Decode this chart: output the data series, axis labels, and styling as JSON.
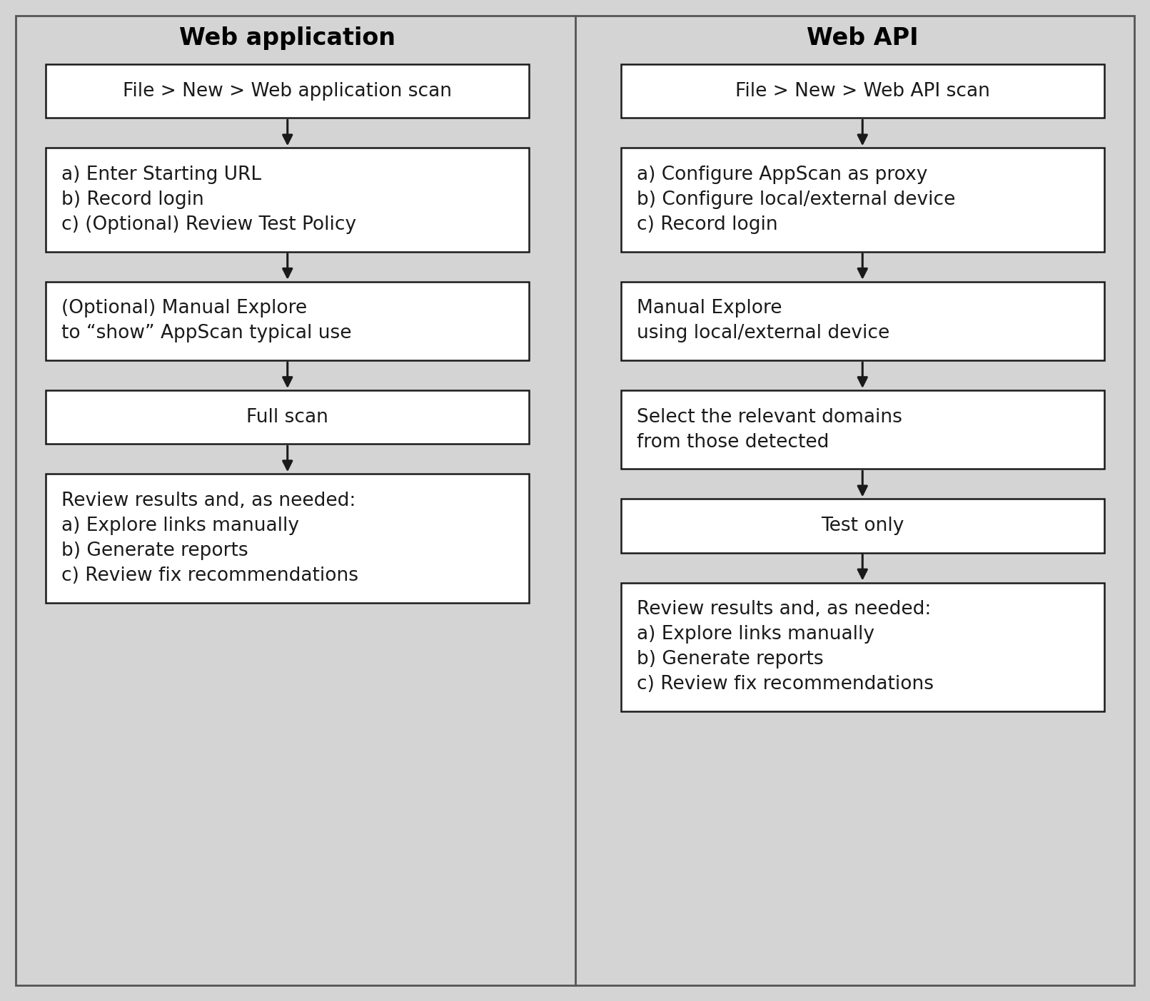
{
  "bg_color": "#d4d4d4",
  "box_bg": "#ffffff",
  "box_edge": "#1a1a1a",
  "outer_edge": "#555555",
  "text_color": "#1a1a1a",
  "title_color": "#000000",
  "arrow_color": "#1a1a1a",
  "left_title": "Web application",
  "right_title": "Web API",
  "left_boxes": [
    {
      "text": "File > New > Web application scan",
      "lines": 1,
      "center": true
    },
    {
      "text": "a) Enter Starting URL\nb) Record login\nc) (Optional) Review Test Policy",
      "lines": 3,
      "center": false
    },
    {
      "text": "(Optional) Manual Explore\nto “show” AppScan typical use",
      "lines": 2,
      "center": false
    },
    {
      "text": "Full scan",
      "lines": 1,
      "center": true
    },
    {
      "text": "Review results and, as needed:\na) Explore links manually\nb) Generate reports\nc) Review fix recommendations",
      "lines": 4,
      "center": false
    }
  ],
  "right_boxes": [
    {
      "text": "File > New > Web API scan",
      "lines": 1,
      "center": true
    },
    {
      "text": "a) Configure AppScan as proxy\nb) Configure local/external device\nc) Record login",
      "lines": 3,
      "center": false
    },
    {
      "text": "Manual Explore\nusing local/external device",
      "lines": 2,
      "center": false
    },
    {
      "text": "Select the relevant domains\nfrom those detected",
      "lines": 2,
      "center": false
    },
    {
      "text": "Test only",
      "lines": 1,
      "center": true
    },
    {
      "text": "Review results and, as needed:\na) Explore links manually\nb) Generate reports\nc) Review fix recommendations",
      "lines": 4,
      "center": false
    }
  ],
  "font_size_title": 24,
  "font_size_box": 19,
  "font_family": "DejaVu Sans",
  "fig_width": 16.11,
  "fig_height": 14.03,
  "dpi": 100
}
